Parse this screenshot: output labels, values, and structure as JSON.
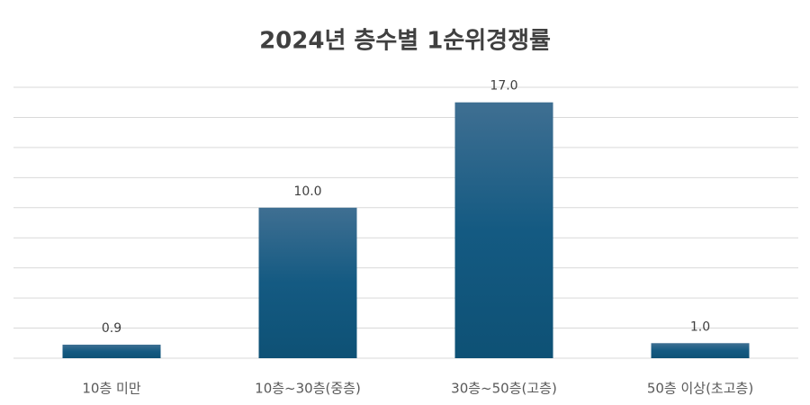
{
  "chart_data": {
    "type": "bar",
    "title": "2024년 층수별 1순위경쟁률",
    "categories": [
      "10층 미만",
      "10층~30층(중층)",
      "30층~50층(고층)",
      "50층 이상(초고층)"
    ],
    "values": [
      0.9,
      10,
      17,
      1
    ],
    "value_labels": [
      "0.9",
      "10.0",
      "17.0",
      "1.0"
    ],
    "color": "#1b5a82",
    "ylim": [
      0,
      18
    ],
    "yticks": [
      0,
      2,
      4,
      6,
      8,
      10,
      12,
      14,
      16,
      18
    ],
    "grid": true
  }
}
